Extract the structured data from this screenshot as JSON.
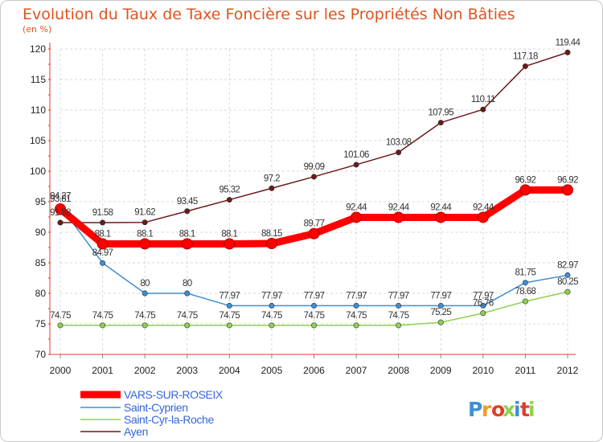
{
  "chart_data": {
    "type": "line",
    "title": "Evolution du Taux de Taxe Foncière sur les Propriétés Non Bâties",
    "subtitle": "(en %)",
    "xlabel": "",
    "ylabel": "",
    "x": [
      "2000",
      "2001",
      "2002",
      "2003",
      "2004",
      "2005",
      "2006",
      "2007",
      "2008",
      "2009",
      "2010",
      "2011",
      "2012"
    ],
    "ylim": [
      70,
      120
    ],
    "yticks": [
      "70",
      "75",
      "80",
      "85",
      "90",
      "95",
      "100",
      "105",
      "110",
      "115",
      "120"
    ],
    "grid": true,
    "legend_position": "bottom-left",
    "series": [
      {
        "name": "VARS-SUR-ROSEIX",
        "color": "#ff0000",
        "values": [
          93.81,
          88.1,
          88.1,
          88.1,
          88.1,
          88.15,
          89.77,
          92.44,
          92.44,
          92.44,
          92.44,
          96.92,
          96.92
        ],
        "labels": [
          "93.81",
          "88.1",
          "88.1",
          "88.1",
          "88.1",
          "88.15",
          "89.77",
          "92.44",
          "92.44",
          "92.44",
          "92.44",
          "96.92",
          "96.92"
        ]
      },
      {
        "name": "Saint-Cyprien",
        "color": "#3f8fd2",
        "values": [
          94.27,
          84.97,
          80,
          80,
          77.97,
          77.97,
          77.97,
          77.97,
          77.97,
          77.97,
          77.97,
          81.75,
          82.97
        ],
        "labels": [
          "94.27",
          "84.97",
          "80",
          "80",
          "77.97",
          "77.97",
          "77.97",
          "77.97",
          "77.97",
          "77.97",
          "77.97",
          "81.75",
          "82.97"
        ]
      },
      {
        "name": "Saint-Cyr-la-Roche",
        "color": "#8fd14f",
        "values": [
          74.75,
          74.75,
          74.75,
          74.75,
          74.75,
          74.75,
          74.75,
          74.75,
          74.75,
          75.25,
          76.76,
          78.68,
          80.25
        ],
        "labels": [
          "74.75",
          "74.75",
          "74.75",
          "74.75",
          "74.75",
          "74.75",
          "74.75",
          "74.75",
          "74.75",
          "75.25",
          "76.76",
          "78.68",
          "80.25"
        ]
      },
      {
        "name": "Ayen",
        "color": "#6a1a1a",
        "values": [
          91.58,
          91.58,
          91.62,
          93.45,
          95.32,
          97.2,
          99.09,
          101.06,
          103.08,
          107.95,
          110.11,
          117.18,
          119.44
        ],
        "labels": [
          "91.58",
          "91.58",
          "91.62",
          "93.45",
          "95.32",
          "97.2",
          "99.09",
          "101.06",
          "103.08",
          "107.95",
          "110.11",
          "117.18",
          "119.44"
        ]
      }
    ]
  },
  "brand": {
    "letters": [
      "P",
      "r",
      "o",
      "x",
      "i",
      "t",
      "i"
    ],
    "colors": [
      "#3f8fd2",
      "#f29b1e",
      "#e23d28",
      "#8fd14f",
      "#3f8fd2",
      "#e23d28",
      "#8fd14f"
    ]
  }
}
